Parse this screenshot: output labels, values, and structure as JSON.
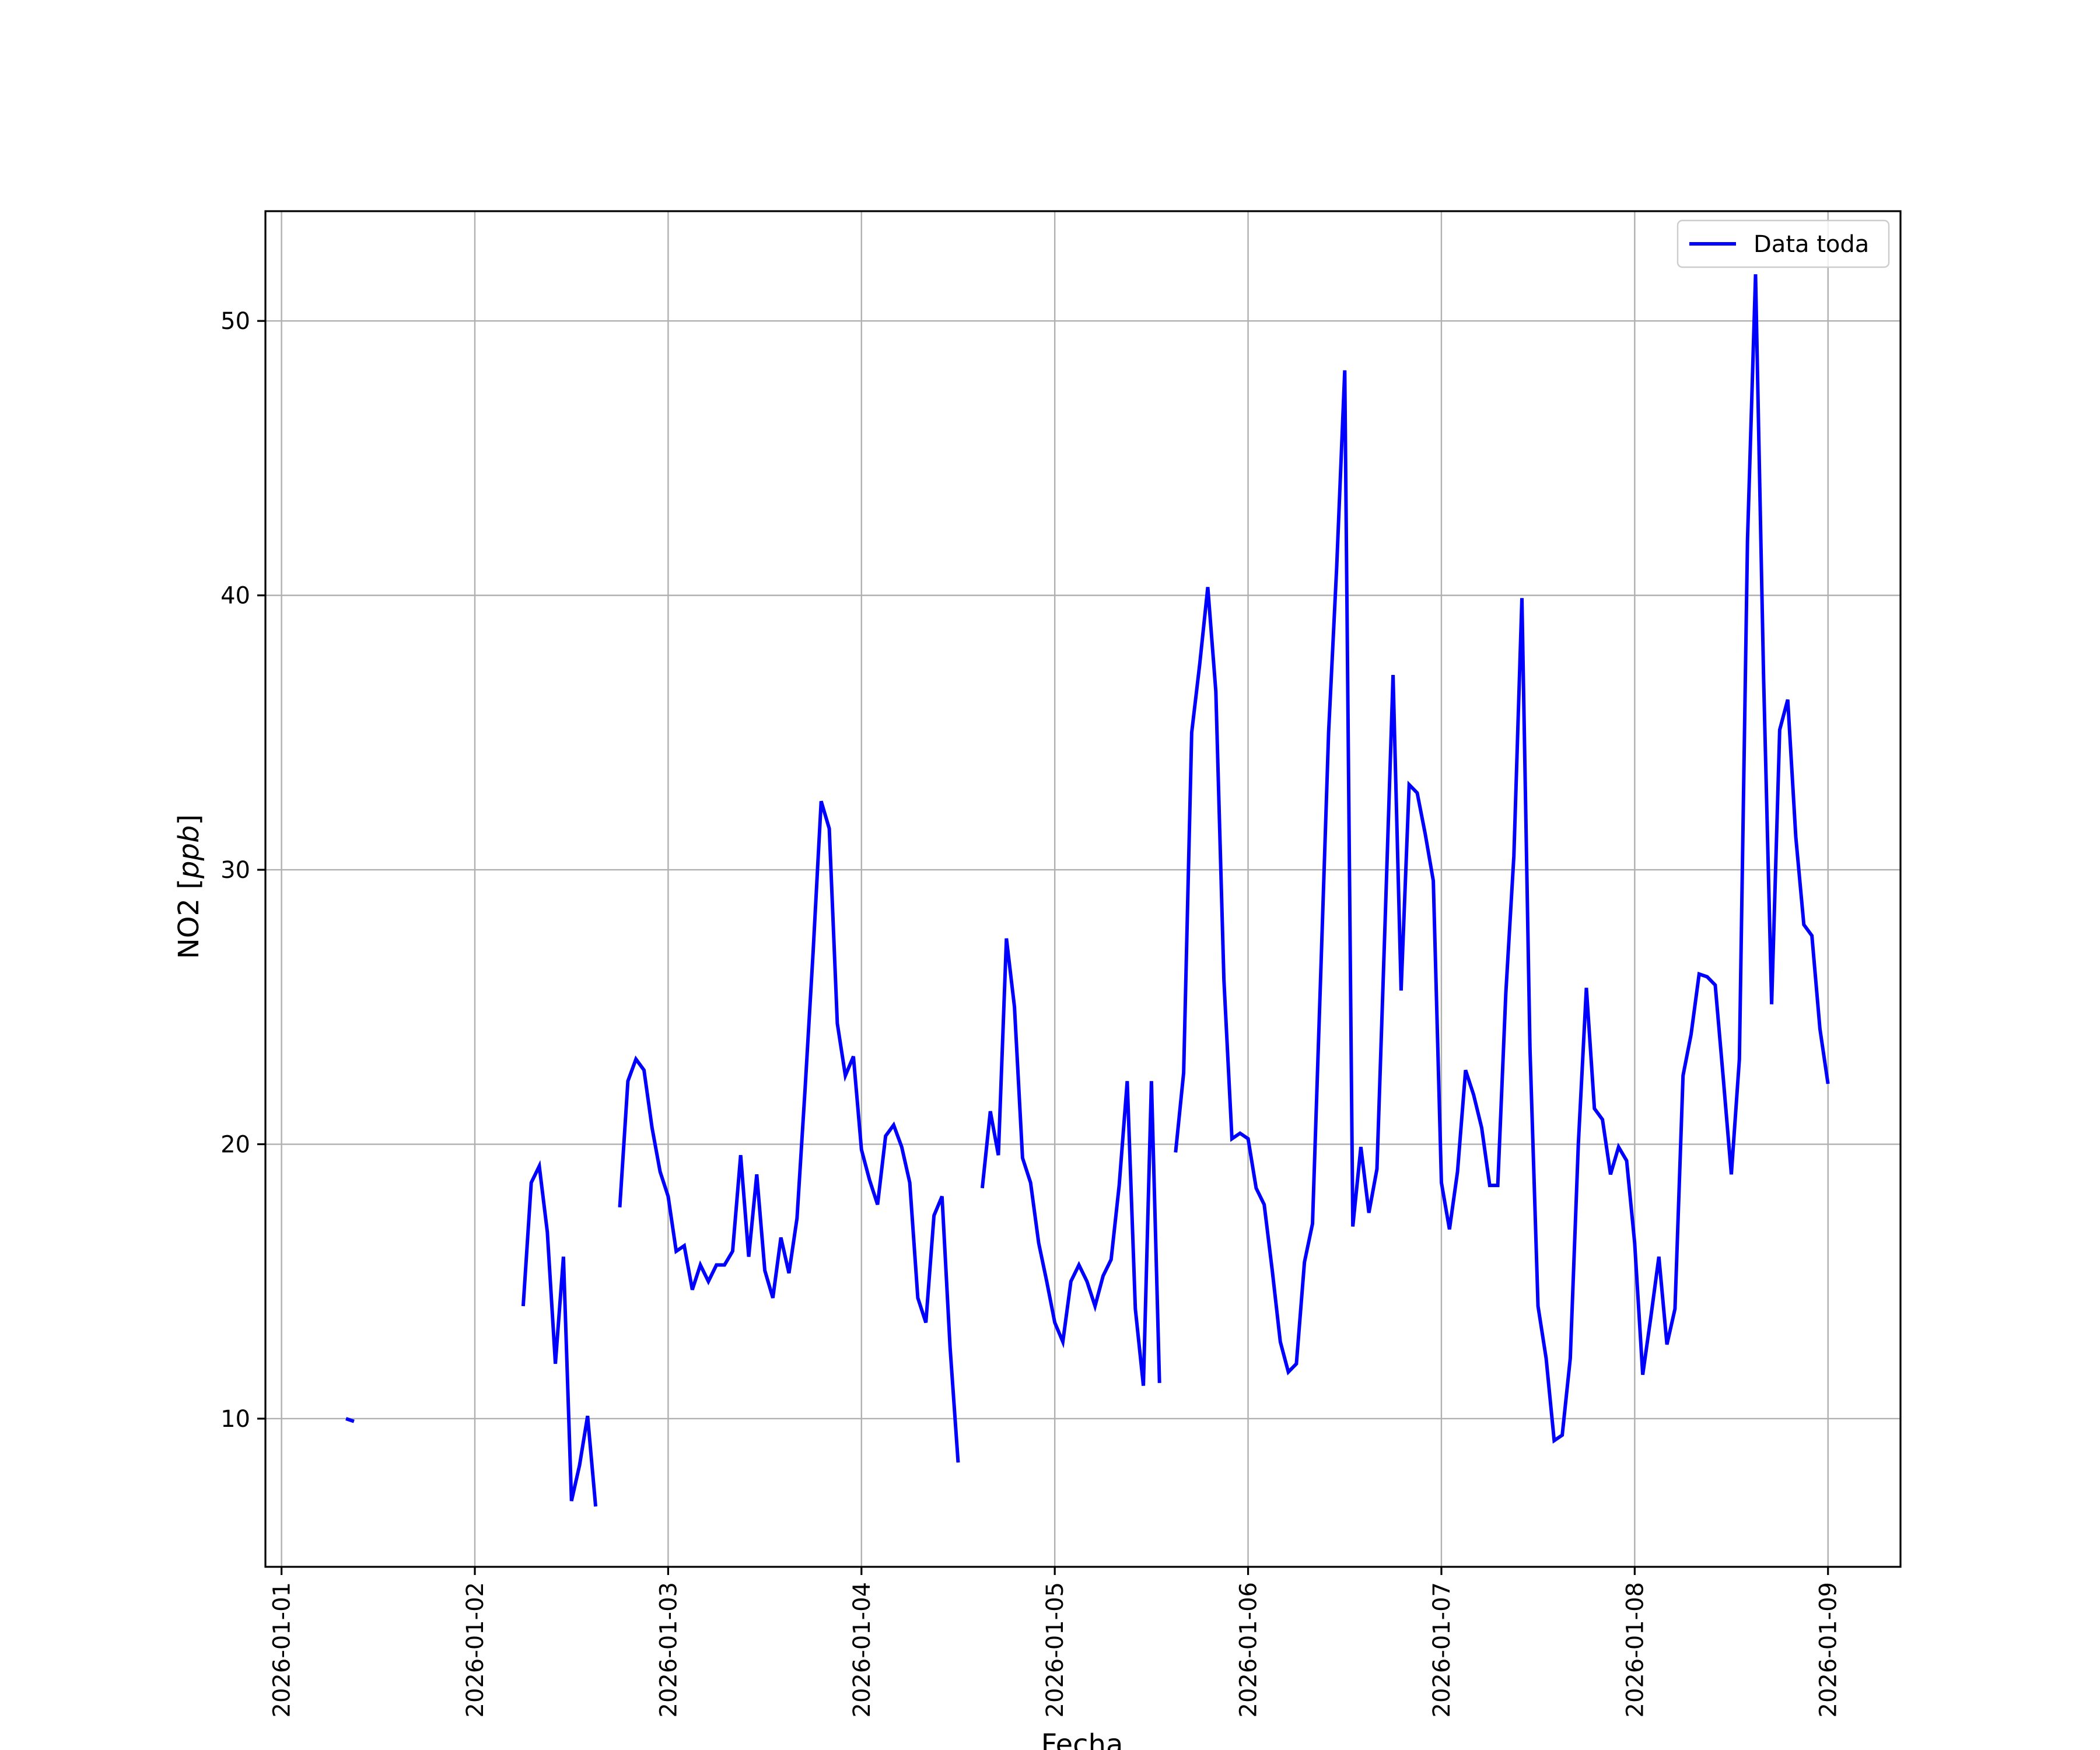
{
  "chart_data": {
    "type": "line",
    "title": "",
    "xlabel": "Fecha",
    "ylabel_main": "NO2 [",
    "ylabel_unit": "ppb",
    "ylabel_close": "]",
    "x_axis_type": "date",
    "xlim": [
      "2026-01-00T22:00",
      "2026-01-09T09:00"
    ],
    "ylim": [
      4.6,
      54.0
    ],
    "xticks": [
      "2026-01-01",
      "2026-01-02",
      "2026-01-03",
      "2026-01-04",
      "2026-01-05",
      "2026-01-06",
      "2026-01-07",
      "2026-01-08",
      "2026-01-09"
    ],
    "yticks": [
      10,
      20,
      30,
      40,
      50
    ],
    "grid": true,
    "legend_position": "top-right",
    "series": [
      {
        "name": "Data toda",
        "color": "#0000ff",
        "segments": [
          [
            [
              "2026-01-01T08:00",
              10.0
            ],
            [
              "2026-01-01T09:00",
              9.9
            ]
          ],
          [
            [
              "2026-01-02T06:00",
              14.1
            ],
            [
              "2026-01-02T07:00",
              18.6
            ],
            [
              "2026-01-02T08:00",
              19.2
            ],
            [
              "2026-01-02T09:00",
              16.8
            ],
            [
              "2026-01-02T10:00",
              12.0
            ],
            [
              "2026-01-02T11:00",
              15.9
            ],
            [
              "2026-01-02T12:00",
              7.0
            ],
            [
              "2026-01-02T13:00",
              8.3
            ],
            [
              "2026-01-02T14:00",
              10.1
            ],
            [
              "2026-01-02T15:00",
              6.8
            ]
          ],
          [
            [
              "2026-01-02T18:00",
              17.7
            ],
            [
              "2026-01-02T19:00",
              22.3
            ],
            [
              "2026-01-02T20:00",
              23.1
            ],
            [
              "2026-01-02T21:00",
              22.7
            ],
            [
              "2026-01-02T22:00",
              20.6
            ],
            [
              "2026-01-02T23:00",
              19.0
            ],
            [
              "2026-01-03T00:00",
              18.1
            ],
            [
              "2026-01-03T01:00",
              16.1
            ],
            [
              "2026-01-03T02:00",
              16.3
            ],
            [
              "2026-01-03T03:00",
              14.7
            ],
            [
              "2026-01-03T04:00",
              15.6
            ],
            [
              "2026-01-03T05:00",
              15.0
            ],
            [
              "2026-01-03T06:00",
              15.6
            ],
            [
              "2026-01-03T07:00",
              15.6
            ],
            [
              "2026-01-03T08:00",
              16.1
            ],
            [
              "2026-01-03T09:00",
              19.6
            ],
            [
              "2026-01-03T10:00",
              15.9
            ],
            [
              "2026-01-03T11:00",
              18.9
            ],
            [
              "2026-01-03T12:00",
              15.4
            ],
            [
              "2026-01-03T13:00",
              14.4
            ],
            [
              "2026-01-03T14:00",
              16.6
            ],
            [
              "2026-01-03T15:00",
              15.3
            ],
            [
              "2026-01-03T16:00",
              17.3
            ],
            [
              "2026-01-03T17:00",
              22.0
            ],
            [
              "2026-01-03T18:00",
              27.0
            ],
            [
              "2026-01-03T19:00",
              32.5
            ],
            [
              "2026-01-03T20:00",
              31.5
            ],
            [
              "2026-01-03T21:00",
              24.4
            ],
            [
              "2026-01-03T22:00",
              22.5
            ],
            [
              "2026-01-03T23:00",
              23.2
            ],
            [
              "2026-01-04T00:00",
              19.8
            ],
            [
              "2026-01-04T01:00",
              18.7
            ],
            [
              "2026-01-04T02:00",
              17.8
            ],
            [
              "2026-01-04T03:00",
              20.3
            ],
            [
              "2026-01-04T04:00",
              20.7
            ],
            [
              "2026-01-04T05:00",
              19.9
            ],
            [
              "2026-01-04T06:00",
              18.6
            ],
            [
              "2026-01-04T07:00",
              14.4
            ],
            [
              "2026-01-04T08:00",
              13.5
            ],
            [
              "2026-01-04T09:00",
              17.4
            ],
            [
              "2026-01-04T10:00",
              18.1
            ],
            [
              "2026-01-04T11:00",
              12.6
            ],
            [
              "2026-01-04T12:00",
              8.4
            ]
          ],
          [
            [
              "2026-01-04T15:00",
              18.4
            ],
            [
              "2026-01-04T16:00",
              21.2
            ],
            [
              "2026-01-04T17:00",
              19.6
            ],
            [
              "2026-01-04T18:00",
              27.5
            ],
            [
              "2026-01-04T19:00",
              25.0
            ],
            [
              "2026-01-04T20:00",
              19.5
            ],
            [
              "2026-01-04T21:00",
              18.6
            ],
            [
              "2026-01-04T22:00",
              16.4
            ],
            [
              "2026-01-04T23:00",
              15.0
            ],
            [
              "2026-01-05T00:00",
              13.5
            ],
            [
              "2026-01-05T01:00",
              12.8
            ],
            [
              "2026-01-05T02:00",
              15.0
            ],
            [
              "2026-01-05T03:00",
              15.6
            ],
            [
              "2026-01-05T04:00",
              15.0
            ],
            [
              "2026-01-05T05:00",
              14.1
            ],
            [
              "2026-01-05T06:00",
              15.2
            ],
            [
              "2026-01-05T07:00",
              15.8
            ],
            [
              "2026-01-05T08:00",
              18.5
            ],
            [
              "2026-01-05T09:00",
              22.3
            ],
            [
              "2026-01-05T10:00",
              14.0
            ],
            [
              "2026-01-05T11:00",
              11.2
            ],
            [
              "2026-01-05T12:00",
              22.3
            ],
            [
              "2026-01-05T13:00",
              11.3
            ]
          ],
          [
            [
              "2026-01-05T15:00",
              19.7
            ],
            [
              "2026-01-05T16:00",
              22.6
            ],
            [
              "2026-01-05T17:00",
              35.0
            ],
            [
              "2026-01-05T18:00",
              37.5
            ],
            [
              "2026-01-05T19:00",
              40.3
            ],
            [
              "2026-01-05T20:00",
              36.5
            ],
            [
              "2026-01-05T21:00",
              26.0
            ],
            [
              "2026-01-05T22:00",
              20.2
            ],
            [
              "2026-01-05T23:00",
              20.4
            ],
            [
              "2026-01-06T00:00",
              20.2
            ],
            [
              "2026-01-06T01:00",
              18.4
            ],
            [
              "2026-01-06T02:00",
              17.8
            ],
            [
              "2026-01-06T03:00",
              15.4
            ],
            [
              "2026-01-06T04:00",
              12.8
            ],
            [
              "2026-01-06T05:00",
              11.7
            ],
            [
              "2026-01-06T06:00",
              12.0
            ],
            [
              "2026-01-06T07:00",
              15.7
            ],
            [
              "2026-01-06T08:00",
              17.1
            ],
            [
              "2026-01-06T09:00",
              26.0
            ],
            [
              "2026-01-06T10:00",
              35.0
            ],
            [
              "2026-01-06T11:00",
              41.0
            ],
            [
              "2026-01-06T12:00",
              48.2
            ],
            [
              "2026-01-06T13:00",
              17.0
            ],
            [
              "2026-01-06T14:00",
              19.9
            ],
            [
              "2026-01-06T15:00",
              17.5
            ],
            [
              "2026-01-06T16:00",
              19.1
            ],
            [
              "2026-01-06T17:00",
              28.0
            ],
            [
              "2026-01-06T18:00",
              37.1
            ],
            [
              "2026-01-06T19:00",
              25.6
            ],
            [
              "2026-01-06T20:00",
              33.1
            ],
            [
              "2026-01-06T21:00",
              32.8
            ],
            [
              "2026-01-06T22:00",
              31.3
            ],
            [
              "2026-01-06T23:00",
              29.6
            ],
            [
              "2026-01-07T00:00",
              18.6
            ],
            [
              "2026-01-07T01:00",
              16.9
            ],
            [
              "2026-01-07T02:00",
              19.0
            ],
            [
              "2026-01-07T03:00",
              22.7
            ],
            [
              "2026-01-07T04:00",
              21.8
            ],
            [
              "2026-01-07T05:00",
              20.6
            ],
            [
              "2026-01-07T06:00",
              18.5
            ],
            [
              "2026-01-07T07:00",
              18.5
            ],
            [
              "2026-01-07T08:00",
              25.5
            ],
            [
              "2026-01-07T09:00",
              30.5
            ],
            [
              "2026-01-07T10:00",
              39.9
            ],
            [
              "2026-01-07T11:00",
              23.5
            ],
            [
              "2026-01-07T12:00",
              14.1
            ],
            [
              "2026-01-07T13:00",
              12.2
            ],
            [
              "2026-01-07T14:00",
              9.2
            ],
            [
              "2026-01-07T15:00",
              9.4
            ],
            [
              "2026-01-07T16:00",
              12.2
            ],
            [
              "2026-01-07T17:00",
              20.0
            ],
            [
              "2026-01-07T18:00",
              25.7
            ],
            [
              "2026-01-07T19:00",
              21.3
            ],
            [
              "2026-01-07T20:00",
              20.9
            ],
            [
              "2026-01-07T21:00",
              18.9
            ],
            [
              "2026-01-07T22:00",
              19.9
            ],
            [
              "2026-01-07T23:00",
              19.4
            ],
            [
              "2026-01-08T00:00",
              16.4
            ],
            [
              "2026-01-08T01:00",
              11.6
            ],
            [
              "2026-01-08T02:00",
              13.7
            ],
            [
              "2026-01-08T03:00",
              15.9
            ],
            [
              "2026-01-08T04:00",
              12.7
            ],
            [
              "2026-01-08T05:00",
              14.0
            ],
            [
              "2026-01-08T06:00",
              22.5
            ],
            [
              "2026-01-08T07:00",
              24.0
            ],
            [
              "2026-01-08T08:00",
              26.2
            ],
            [
              "2026-01-08T09:00",
              26.1
            ],
            [
              "2026-01-08T10:00",
              25.8
            ],
            [
              "2026-01-08T11:00",
              22.4
            ],
            [
              "2026-01-08T12:00",
              18.9
            ],
            [
              "2026-01-08T13:00",
              23.1
            ],
            [
              "2026-01-08T14:00",
              42.0
            ],
            [
              "2026-01-08T15:00",
              51.7
            ],
            [
              "2026-01-08T16:00",
              37.0
            ],
            [
              "2026-01-08T17:00",
              25.1
            ],
            [
              "2026-01-08T18:00",
              35.1
            ],
            [
              "2026-01-08T19:00",
              36.2
            ],
            [
              "2026-01-08T20:00",
              31.2
            ],
            [
              "2026-01-08T21:00",
              28.0
            ],
            [
              "2026-01-08T22:00",
              27.6
            ],
            [
              "2026-01-08T23:00",
              24.2
            ],
            [
              "2026-01-09T00:00",
              22.2
            ]
          ]
        ]
      }
    ]
  }
}
